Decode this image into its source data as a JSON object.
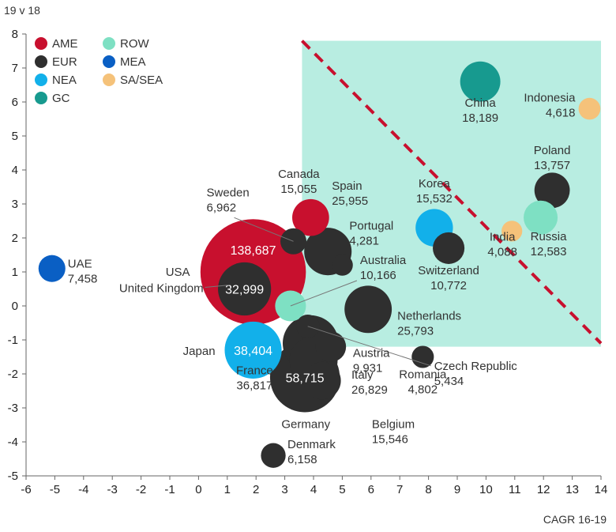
{
  "chart_data": {
    "type": "scatter",
    "title": "",
    "ylabel": "19 v 18",
    "xlabel": "CAGR 16-19",
    "xlim": [
      -6,
      14
    ],
    "ylim": [
      -5,
      8
    ],
    "xticks": [
      "-6",
      "-5",
      "-4",
      "-3",
      "-2",
      "-1",
      "0",
      "1",
      "2",
      "3",
      "4",
      "5",
      "6",
      "7",
      "8",
      "9",
      "10",
      "11",
      "12",
      "13",
      "14"
    ],
    "yticks": [
      "8",
      "7",
      "6",
      "5",
      "4",
      "3",
      "2",
      "1",
      "0",
      "-1",
      "-2",
      "-3",
      "-4",
      "-5"
    ],
    "legend_position": "top-left",
    "groups": [
      {
        "name": "AME",
        "color": "#c8102e"
      },
      {
        "name": "ROW",
        "color": "#7ee0c3"
      },
      {
        "name": "EUR",
        "color": "#2f2f2f"
      },
      {
        "name": "MEA",
        "color": "#0a5fc4"
      },
      {
        "name": "NEA",
        "color": "#12b0ea"
      },
      {
        "name": "SA/SEA",
        "color": "#f5c27a"
      },
      {
        "name": "GC",
        "color": "#179a8f"
      }
    ],
    "shaded_region_color": "#b8ede1",
    "trend_line_color": "#c8102e",
    "points": [
      {
        "name": "USA",
        "group": "AME",
        "x": 1.9,
        "y": 1.0,
        "size": "138,687",
        "size_value": 138687
      },
      {
        "name": "Canada",
        "group": "AME",
        "x": 3.9,
        "y": 2.6,
        "size": "15,055",
        "size_value": 15055
      },
      {
        "name": "UAE",
        "group": "MEA",
        "x": -5.1,
        "y": 1.1,
        "size": "7,458",
        "size_value": 7458
      },
      {
        "name": "Japan",
        "group": "NEA",
        "x": 1.9,
        "y": -1.3,
        "size": "38,404",
        "size_value": 38404
      },
      {
        "name": "Korea",
        "group": "NEA",
        "x": 8.2,
        "y": 2.3,
        "size": "15,532",
        "size_value": 15532
      },
      {
        "name": "China",
        "group": "GC",
        "x": 9.8,
        "y": 6.6,
        "size": "18,189",
        "size_value": 18189
      },
      {
        "name": "Indonesia",
        "group": "SA/SEA",
        "x": 13.6,
        "y": 5.8,
        "size": "4,618",
        "size_value": 4618
      },
      {
        "name": "India",
        "group": "SA/SEA",
        "x": 10.9,
        "y": 2.2,
        "size": "4,088",
        "size_value": 4088
      },
      {
        "name": "Russia",
        "group": "ROW",
        "x": 11.9,
        "y": 2.6,
        "size": "12,583",
        "size_value": 12583
      },
      {
        "name": "Australia",
        "group": "ROW",
        "x": 3.2,
        "y": 0.0,
        "size": "10,166",
        "size_value": 10166
      },
      {
        "name": "United Kingdom",
        "group": "EUR",
        "x": 1.6,
        "y": 0.5,
        "size": "32,999",
        "size_value": 32999
      },
      {
        "name": "Sweden",
        "group": "EUR",
        "x": 3.3,
        "y": 1.9,
        "size": "6,962",
        "size_value": 6962
      },
      {
        "name": "Spain",
        "group": "EUR",
        "x": 4.5,
        "y": 1.6,
        "size": "25,955",
        "size_value": 25955
      },
      {
        "name": "Portugal",
        "group": "EUR",
        "x": 5.0,
        "y": 1.2,
        "size": "4,281",
        "size_value": 4281
      },
      {
        "name": "Poland",
        "group": "EUR",
        "x": 12.3,
        "y": 3.4,
        "size": "13,757",
        "size_value": 13757
      },
      {
        "name": "Switzerland",
        "group": "EUR",
        "x": 8.7,
        "y": 1.7,
        "size": "10,772",
        "size_value": 10772
      },
      {
        "name": "Netherlands",
        "group": "EUR",
        "x": 5.9,
        "y": -0.1,
        "size": "25,793",
        "size_value": 25793
      },
      {
        "name": "Czech Republic",
        "group": "EUR",
        "x": 3.8,
        "y": -0.6,
        "size": "5,434",
        "size_value": 5434
      },
      {
        "name": "Romania",
        "group": "EUR",
        "x": 7.8,
        "y": -1.5,
        "size": "4,802",
        "size_value": 4802
      },
      {
        "name": "Austria",
        "group": "EUR",
        "x": 4.6,
        "y": -1.2,
        "size": "9,931",
        "size_value": 9931
      },
      {
        "name": "France",
        "group": "EUR",
        "x": 3.9,
        "y": -1.1,
        "size": "36,817",
        "size_value": 36817
      },
      {
        "name": "Italy",
        "group": "EUR",
        "x": 4.0,
        "y": -1.6,
        "size": "26,829",
        "size_value": 26829
      },
      {
        "name": "Belgium",
        "group": "EUR",
        "x": 4.3,
        "y": -2.2,
        "size": "15,546",
        "size_value": 15546
      },
      {
        "name": "Germany",
        "group": "EUR",
        "x": 3.7,
        "y": -2.1,
        "size": "58,715",
        "size_value": 58715
      },
      {
        "name": "Denmark",
        "group": "EUR",
        "x": 2.6,
        "y": -4.4,
        "size": "6,158",
        "size_value": 6158
      }
    ],
    "trend_line": {
      "x": [
        3.6,
        14.0
      ],
      "y": [
        7.8,
        -1.1
      ]
    },
    "shaded_region": {
      "x": [
        3.6,
        14.0
      ],
      "y": [
        -1.2,
        7.8
      ]
    }
  }
}
